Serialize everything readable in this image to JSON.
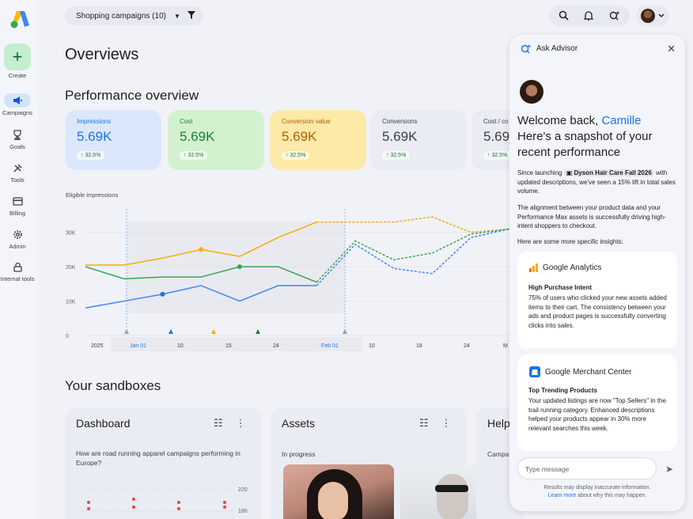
{
  "nav": {
    "create": "Create",
    "items": [
      {
        "label": "Campaigns",
        "icon": "campaigns-icon",
        "active": true
      },
      {
        "label": "Goals",
        "icon": "goals-icon"
      },
      {
        "label": "Tools",
        "icon": "tools-icon"
      },
      {
        "label": "Billing",
        "icon": "billing-icon"
      },
      {
        "label": "Admin",
        "icon": "admin-icon"
      },
      {
        "label": "Internal tools",
        "icon": "lock-icon"
      }
    ]
  },
  "topbar": {
    "campaign_selector": "Shopping campaigns (10)"
  },
  "page": {
    "title": "Overviews",
    "performance_title": "Performance overview",
    "sandboxes_title": "Your sandboxes"
  },
  "metrics": [
    {
      "label": "Impressions",
      "value": "5.69K",
      "change": "↑ 32.5%",
      "bg": "#dbe8fc",
      "color": "#1a73e8"
    },
    {
      "label": "Cost",
      "value": "5.69K",
      "change": "↑ 32.5%",
      "bg": "#d4f1cf",
      "color": "#188038"
    },
    {
      "label": "Conversion value",
      "value": "5.69K",
      "change": "↑ 32.5%",
      "bg": "#fde9a8",
      "color": "#b06000"
    },
    {
      "label": "Conversions",
      "value": "5.69K",
      "change": "↑ 32.5%",
      "bg": "#e9ecf2",
      "color": "#3c4043"
    },
    {
      "label": "Cost / co",
      "value": "5.69",
      "change": "↑ 32.5%",
      "bg": "#e9ecf2",
      "color": "#3c4043"
    }
  ],
  "chart_data": {
    "type": "line",
    "title": "Eligible impressions",
    "y_ticks": [
      "30K",
      "20K",
      "10K",
      "0"
    ],
    "ylim": [
      0,
      35000
    ],
    "x_ticks": [
      "2025",
      "Jan 01",
      "10",
      "15",
      "24",
      "Feb 01",
      "10",
      "18",
      "24",
      "M"
    ],
    "series": [
      {
        "color": "#f9ab00",
        "values": [
          20500,
          20500,
          22500,
          25000,
          23000,
          28500,
          33000,
          33000,
          33000,
          34500,
          30000,
          31000
        ]
      },
      {
        "color": "#34a853",
        "values": [
          20000,
          16500,
          17000,
          17000,
          20000,
          20000,
          15500,
          27500,
          22000,
          24000,
          29500,
          31000
        ]
      },
      {
        "color": "#4285f4",
        "values": [
          8000,
          10000,
          12000,
          14500,
          10000,
          14500,
          14500,
          26500,
          19500,
          18000,
          28500,
          31000
        ]
      }
    ]
  },
  "sandboxes": {
    "dashboard": {
      "title": "Dashboard",
      "question": "How are road running apparel campaigns performing in Europe?",
      "y_ticks": [
        "220",
        "180"
      ]
    },
    "assets": {
      "title": "Assets",
      "status": "In progress"
    },
    "help": {
      "title": "Help",
      "sub": "Campa"
    }
  },
  "advisor": {
    "title": "Ask Advisor",
    "welcome": "Welcome back,",
    "user_name": "Camille",
    "headline": "Here's a snapshot of your recent performance",
    "intro_pre": "Since launching",
    "campaign": "Dyson Hair Care Fall 2026",
    "intro_post": "with updated descriptions, we've seen a 15% lift in total sales volume.",
    "alignment": "The alignment between your product data and your Performance Max assets is successfully driving high-intent shoppers to checkout.",
    "more": "Here are some more specific insights:",
    "insights": [
      {
        "source": "Google Analytics",
        "icon": "analytics-icon",
        "title": "High Purchase Intent",
        "body": "75% of users who clicked your new assets added items to their cart. The consistency between your ads and product pages is successfully converting clicks into sales."
      },
      {
        "source": "Google Merchant Center",
        "icon": "merchant-center-icon",
        "title": "Top Trending Products",
        "body": "Your updated listings are now \"Top Sellers\" in the trail running category. Enhanced descriptions helped your products appear in 30% more relevant searches this week."
      }
    ],
    "input_placeholder": "Type message",
    "disclaimer": "Results may display inaccurate information.",
    "learn_more": "Learn more",
    "disclaimer_tail": "about why this may happen."
  }
}
